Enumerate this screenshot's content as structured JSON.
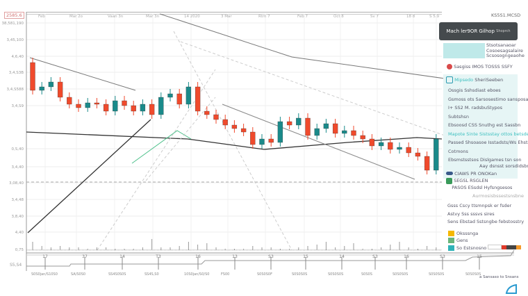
{
  "header": {
    "top_left_box": "2585.6",
    "top_right": "KS5S1.MCSD"
  },
  "chart_data": {
    "type": "candlestick",
    "x_ticks_top": [
      "Feb",
      "Mar 2o",
      "Vaan 3n",
      "Mar 3n",
      "14 2020",
      "3 Mar",
      "Rtm 7",
      "Feb 7",
      "Oct 8",
      "Sv 7",
      "18 8",
      "S 5.9"
    ],
    "y_ticks": [
      "38,581,190",
      "3,45,100",
      "4,6,40",
      "3,4,S3B",
      "3,4,S588",
      "3,4,S9",
      "0,S,40",
      "3,4,40",
      "3,08,40",
      "3,4,48",
      "3,8,40",
      "4,40",
      "0,75"
    ],
    "x_ticks_bottom": [
      "17",
      "37",
      "14",
      "T3",
      "16",
      "13",
      "S3",
      "15",
      "14",
      "S3",
      "16",
      "S3",
      "15"
    ],
    "navigator_labels": [
      "S0S0jan/S10S0",
      "SA/S0S0",
      "SS4S0S0S",
      "SS4S,S0",
      "10S0jan/S0/S0",
      "FS00",
      "S0S0S0F",
      "S0S0S0S",
      "S0S0S0S",
      "S0S0S",
      "S0S0S0S",
      "S0S0S0S",
      "S0S0S0S"
    ],
    "navigator_note": "a Sansaso to Snsans",
    "navigator_value": "S5,S4",
    "first_open": 310,
    "closes": [
      270,
      275,
      282,
      260,
      250,
      245,
      252,
      250,
      240,
      255,
      248,
      240,
      250,
      235,
      260,
      265,
      250,
      275,
      240,
      235,
      228,
      220,
      215,
      210,
      192,
      200,
      195,
      225,
      220,
      230,
      205,
      215,
      222,
      208,
      212,
      205,
      200,
      190,
      195,
      185,
      188,
      180,
      175,
      155,
      200
    ],
    "volumes": [
      6,
      3,
      2,
      3,
      2,
      2,
      1,
      2,
      2,
      1,
      1,
      1,
      2,
      8,
      2,
      2,
      3,
      6,
      4,
      5,
      2,
      1,
      1,
      1,
      3,
      2,
      2,
      1,
      1,
      2,
      3,
      4,
      6,
      2,
      3,
      5,
      1,
      1,
      2,
      4,
      6,
      2,
      1,
      3,
      2
    ],
    "up_color": "#1a8a8a",
    "down_color": "#f04a2c"
  },
  "panel": {
    "title": "Mach ler9OR Gilhop",
    "title_sub": "Shoprch",
    "block1": [
      "Stsotsanaoar",
      "Cosoesagsalaire",
      "Scsosogngeaohe"
    ],
    "item1": "Sasgiss IMOS TOSSS SSFY",
    "item2_accent": "Mipsedo",
    "item2": "SheriSeeben",
    "lines": [
      "Ossgis Sshsdiast eboes",
      "Gsmoss ots Sarsosestimo sansposan",
      "I+ SS2 M. radsbuStypos",
      "Subtshsn",
      "Ebsoosd CSS Snuthg est Sassbn"
    ],
    "accent_line": "Mapote Sinte Sistsstay ottos betsdeb.bos",
    "lines2": [
      "Passed Shsoasoe Isstadsts/Ws Ehste",
      "Cotmons",
      "Ebsmstsstsos Dislgames tsn son"
    ],
    "right_note": "Aay dsnsst sorsdidsbne",
    "status": [
      "CIAWS PR ONOKan",
      "SEGSL RSGLEN",
      "PASOS ESsdsl Hyfsngsesos"
    ],
    "note2": "Aurmosisbssestsnsbne",
    "legend_lines": [
      "Gsss Cscy ttsmnpsk er fsder",
      "Astvy Sss sssvs sires",
      "Sens Ebstad Sstsngbe febstosstry"
    ],
    "legend": [
      {
        "label": "Oksssnga",
        "color": "#f5b800"
      },
      {
        "label": "Gens",
        "color": "#6bb57a"
      },
      {
        "label": "So Estsnosno",
        "color": "#2fb3b8"
      }
    ]
  }
}
